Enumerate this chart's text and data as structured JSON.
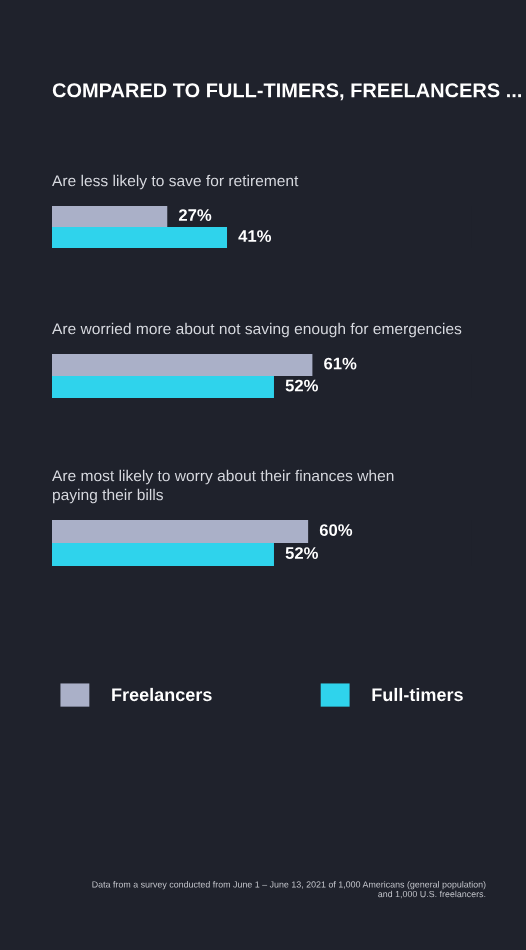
{
  "chart_data": [
    {
      "type": "bar",
      "orientation": "horizontal",
      "title": "COMPARED TO FULL-TIMERS, FREELANCERS ...",
      "subtitle": "Are less likely to save for retirement",
      "categories": [
        null
      ],
      "tick_labels": false,
      "data_labels": true,
      "series": [
        {
          "color": "#aab0c8",
          "values": [
            27
          ],
          "value_labels": [
            "27%"
          ]
        },
        {
          "color": "#2fd3ec",
          "values": [
            41
          ],
          "value_labels": [
            "41%"
          ]
        }
      ]
    },
    {
      "type": "bar",
      "orientation": "horizontal",
      "subtitle": "Are worried more about not saving enough for emergencies",
      "categories": [
        null
      ],
      "tick_labels": false,
      "data_labels": true,
      "series": [
        {
          "color": "#aab0c8",
          "values": [
            61
          ],
          "value_labels": [
            "61%"
          ]
        },
        {
          "color": "#2fd3ec",
          "values": [
            52
          ],
          "value_labels": [
            "52%"
          ]
        }
      ]
    },
    {
      "type": "bar",
      "orientation": "horizontal",
      "subtitle": "Are most likely to worry about their finances when\npaying their bills",
      "categories": [
        null
      ],
      "tick_labels": false,
      "data_labels": true,
      "legend": "bottom",
      "series": [
        {
          "name": "Freelancers",
          "color": "#aab0c8",
          "values": [
            60
          ],
          "value_labels": [
            "60%"
          ]
        },
        {
          "name": "Full-timers",
          "color": "#2fd3ec",
          "values": [
            52
          ],
          "value_labels": [
            "52%"
          ]
        }
      ],
      "annotations": [
        "Data from a survey conducted from June 1 – June 13, 2021 of 1,000 Americans (general population)\nand 1,000 U.S. freelancers."
      ]
    }
  ]
}
